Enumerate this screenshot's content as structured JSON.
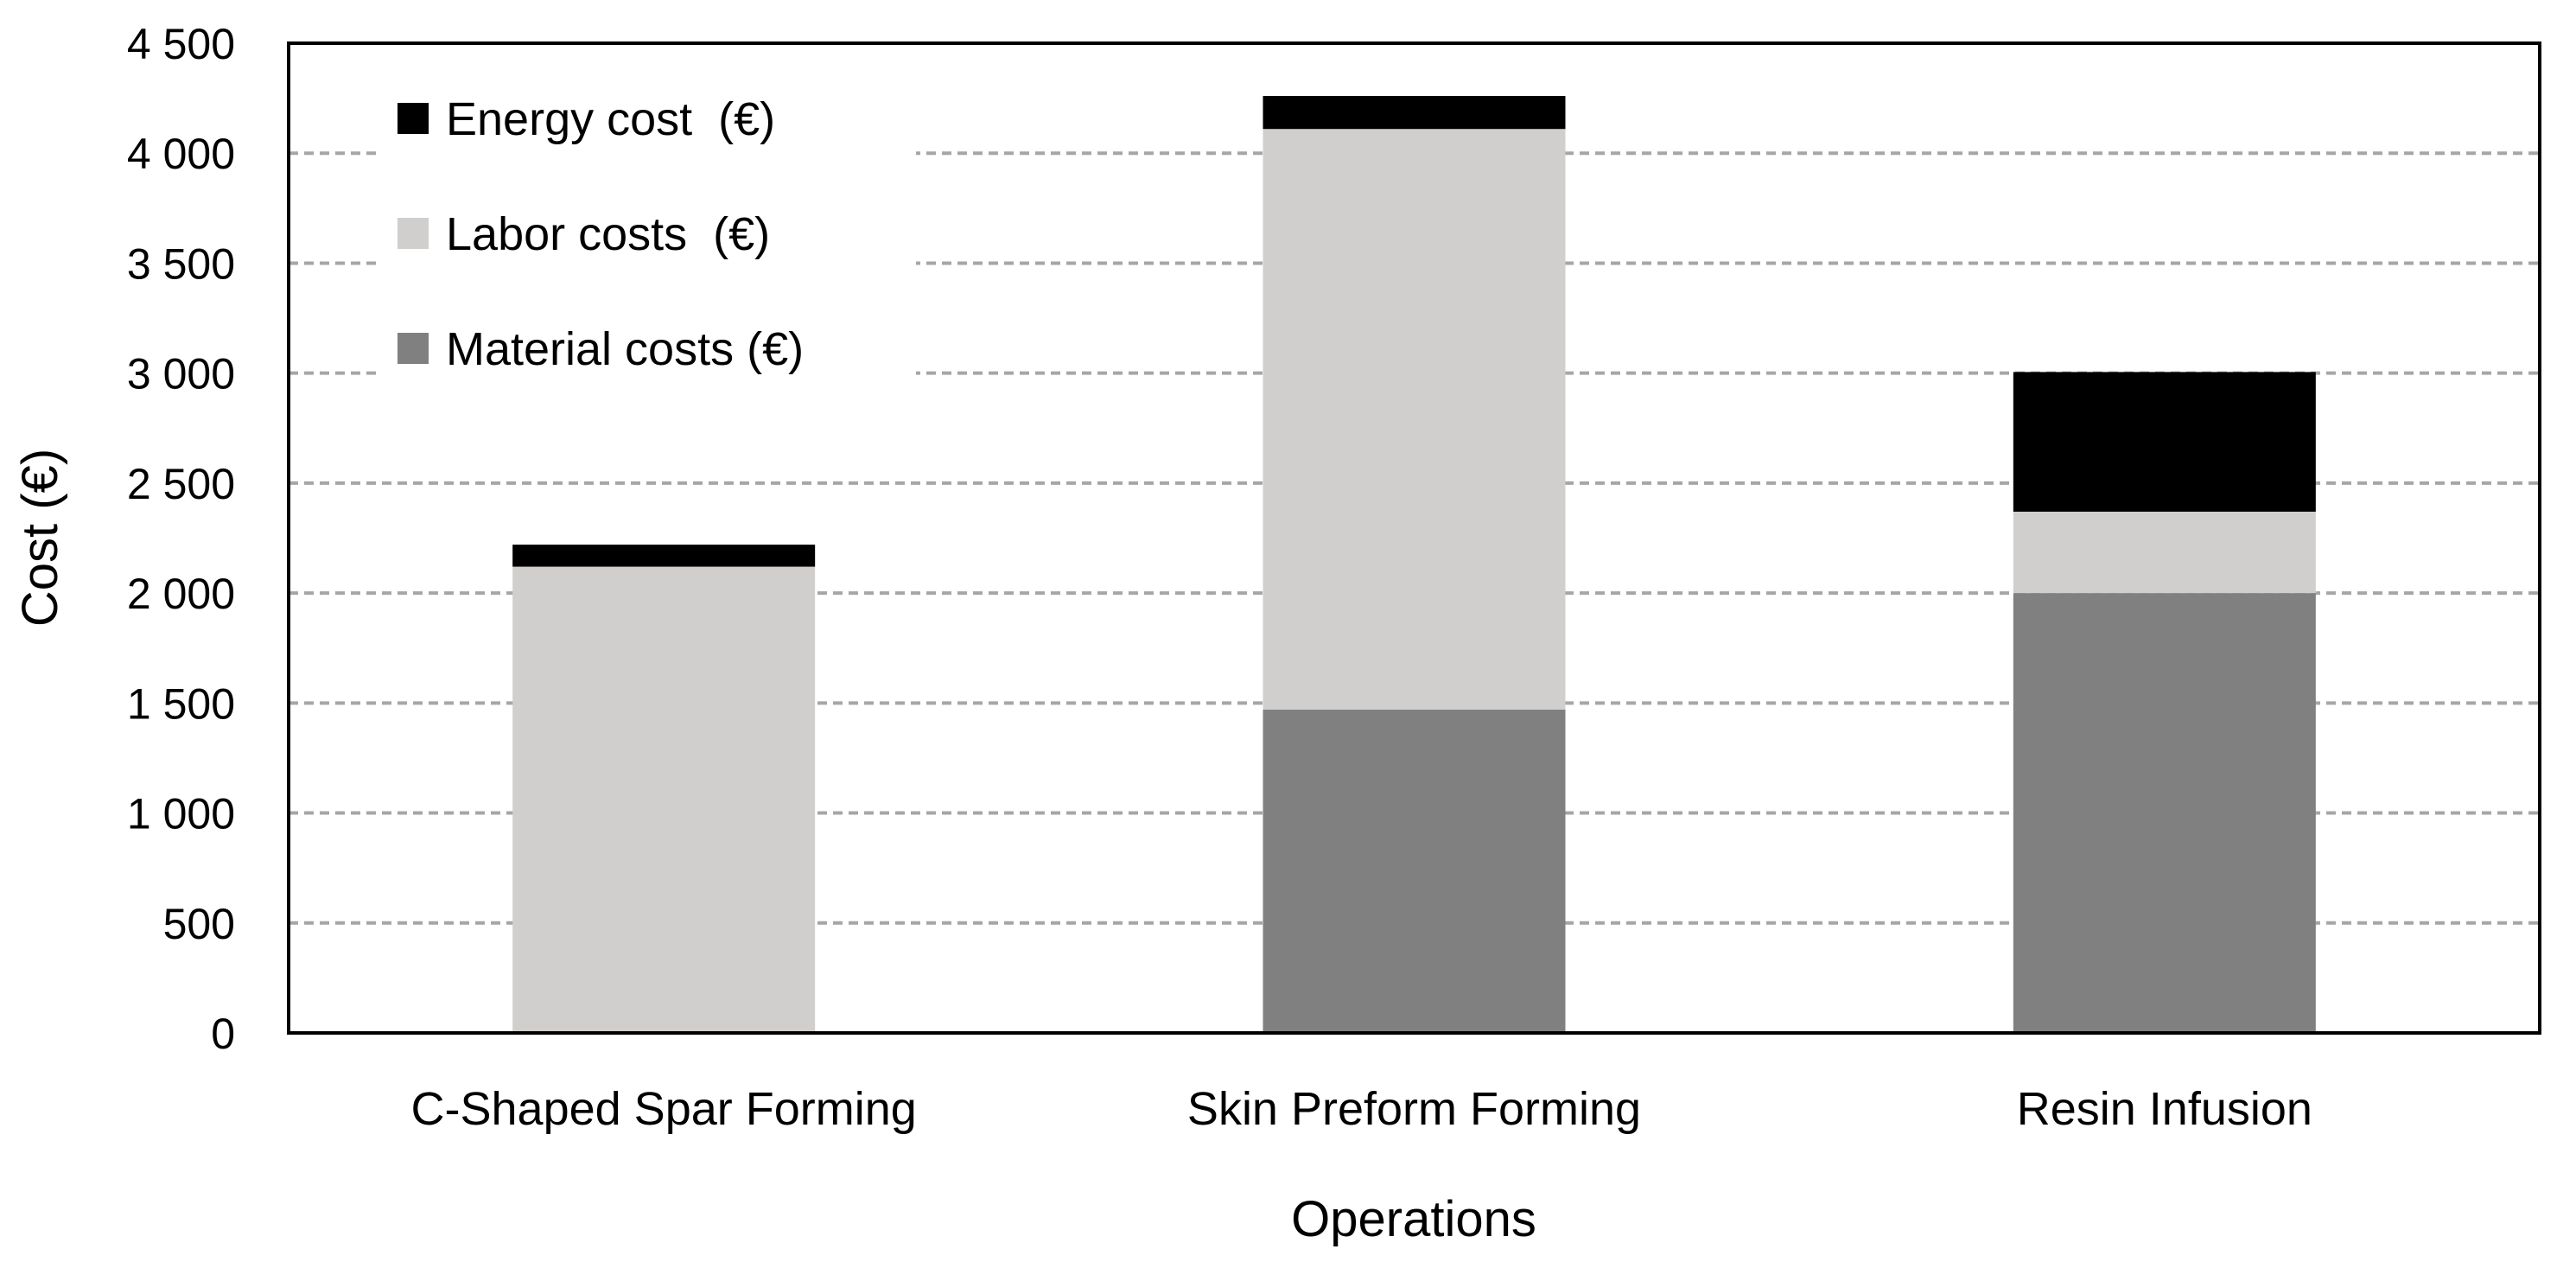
{
  "chart_data": {
    "type": "bar",
    "stacked": true,
    "title": "",
    "xlabel": "Operations",
    "ylabel": "Cost (€)",
    "ylim": [
      0,
      4500
    ],
    "y_ticks": [
      0,
      500,
      1000,
      1500,
      2000,
      2500,
      3000,
      3500,
      4000,
      4500
    ],
    "y_tick_labels": [
      "0",
      "500",
      "1 000",
      "1 500",
      "2 000",
      "2 500",
      "3 000",
      "3 500",
      "4 000",
      "4 500"
    ],
    "grid": "horizontal-dashed",
    "legend_position": "top-left",
    "categories": [
      "C-Shaped Spar Forming",
      "Skin Preform Forming",
      "Resin Infusion"
    ],
    "series": [
      {
        "name": "Material costs (€)",
        "values": [
          0,
          1470,
          2000
        ],
        "color": "#808080"
      },
      {
        "name": "Labor costs  (€)",
        "values": [
          2120,
          2640,
          370
        ],
        "color": "#d0cfce"
      },
      {
        "name": "Energy cost  (€)",
        "values": [
          100,
          150,
          635
        ],
        "color": "#000000"
      }
    ],
    "legend_order": [
      "Energy cost  (€)",
      "Labor costs  (€)",
      "Material costs (€)"
    ]
  }
}
